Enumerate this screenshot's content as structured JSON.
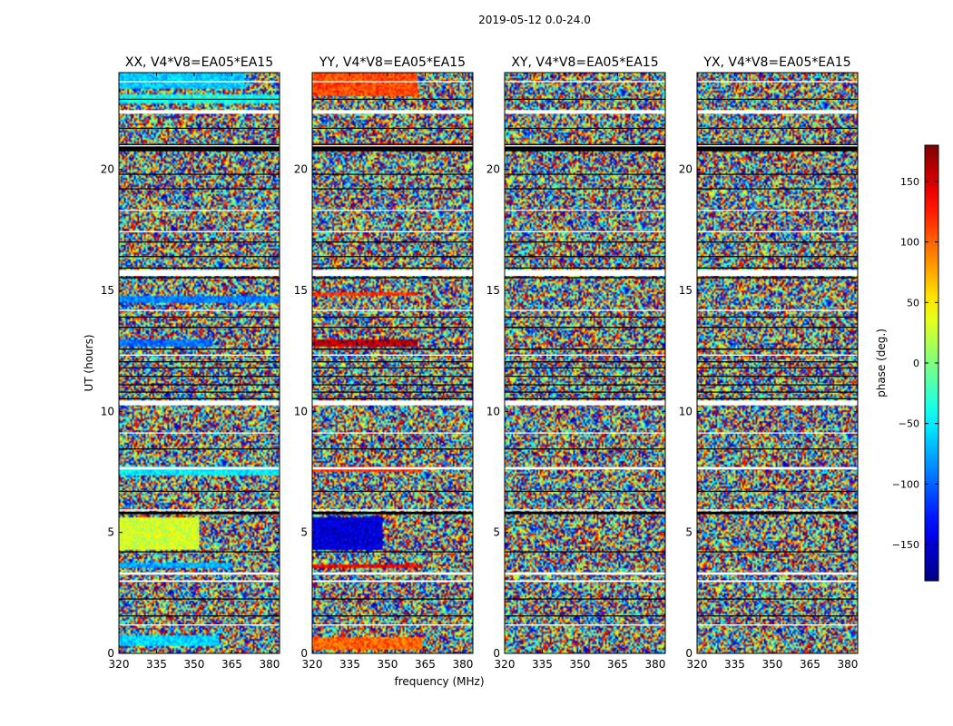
{
  "figure_title": "2019-05-12 0.0-24.0",
  "colors": {
    "flagged": "#000000",
    "blank": "#ffffff",
    "frame": "#000000"
  },
  "chart_data": {
    "type": "heatmap",
    "title": "2019-05-12 0.0-24.0",
    "xlabel": "frequency (MHz)",
    "ylabel": "UT (hours)",
    "xlim": [
      320,
      384
    ],
    "ylim": [
      0,
      24
    ],
    "xticks": [
      320,
      335,
      350,
      365,
      380
    ],
    "yticks": [
      0,
      5,
      10,
      15,
      20
    ],
    "panels": [
      {
        "title": "XX, V4*V8=EA05*EA15",
        "coherent_bands": [
          {
            "t0": 0.3,
            "t1": 0.75,
            "f1": 360,
            "phase": -60
          },
          {
            "t0": 3.5,
            "t1": 3.75,
            "f1": 365,
            "phase": -75
          },
          {
            "t0": 4.3,
            "t1": 5.6,
            "f1": 352,
            "phase": 30
          },
          {
            "t0": 7.35,
            "t1": 7.7,
            "f1": 384,
            "phase": -50
          },
          {
            "t0": 12.7,
            "t1": 12.95,
            "f1": 357,
            "phase": -95
          },
          {
            "t0": 14.5,
            "t1": 14.75,
            "f1": 384,
            "phase": -90
          },
          {
            "t0": 22.7,
            "t1": 23.1,
            "f1": 384,
            "phase": -40
          },
          {
            "t0": 23.3,
            "t1": 24.0,
            "f1": 370,
            "phase": -65
          }
        ]
      },
      {
        "title": "YY, V4*V8=EA05*EA15",
        "coherent_bands": [
          {
            "t0": 0.15,
            "t1": 0.7,
            "f1": 364,
            "phase": 100
          },
          {
            "t0": 3.5,
            "t1": 3.7,
            "f1": 364,
            "phase": 140
          },
          {
            "t0": 4.3,
            "t1": 5.6,
            "f1": 348,
            "phase": -150
          },
          {
            "t0": 7.5,
            "t1": 7.75,
            "f1": 364,
            "phase": 120
          },
          {
            "t0": 12.65,
            "t1": 12.95,
            "f1": 362,
            "phase": 160
          },
          {
            "t0": 14.75,
            "t1": 14.9,
            "f1": 362,
            "phase": 120
          },
          {
            "t0": 20.9,
            "t1": 21.05,
            "f1": 384,
            "phase": 140
          },
          {
            "t0": 23.05,
            "t1": 24.0,
            "f1": 362,
            "phase": 110
          }
        ]
      },
      {
        "title": "XY, V4*V8=EA05*EA15",
        "coherent_bands": []
      },
      {
        "title": "YX, V4*V8=EA05*EA15",
        "coherent_bands": []
      }
    ],
    "blank_rows_utc": [
      [
        15.6,
        15.85
      ],
      [
        10.25,
        10.45
      ],
      [
        22.3,
        22.45
      ],
      [
        20.95,
        21.0
      ],
      [
        7.6,
        7.7
      ],
      [
        3.25,
        3.35
      ],
      [
        2.95,
        3.02
      ],
      [
        14.15,
        14.2
      ],
      [
        1.15,
        1.2
      ],
      [
        17.4,
        17.45
      ],
      [
        5.9,
        5.95
      ],
      [
        23.6,
        23.65
      ],
      [
        12.3,
        12.35
      ],
      [
        18.3,
        18.33
      ],
      [
        9.1,
        9.13
      ]
    ],
    "flag_rows_utc": [
      [
        20.75,
        20.95
      ],
      [
        21.0,
        21.05
      ],
      [
        15.5,
        15.55
      ],
      [
        15.9,
        15.95
      ],
      [
        5.75,
        5.85
      ],
      [
        12.55,
        12.6
      ],
      [
        10.5,
        10.55
      ],
      [
        13.45,
        13.5
      ],
      [
        11.1,
        11.12
      ],
      [
        11.45,
        11.47
      ],
      [
        11.8,
        11.82
      ],
      [
        12.05,
        12.07
      ],
      [
        10.8,
        10.82
      ],
      [
        2.25,
        2.27
      ],
      [
        1.55,
        1.57
      ],
      [
        8.45,
        8.47
      ],
      [
        19.2,
        19.22
      ],
      [
        19.8,
        19.82
      ],
      [
        17.0,
        17.02
      ],
      [
        16.4,
        16.42
      ],
      [
        4.2,
        4.22
      ],
      [
        6.7,
        6.72
      ],
      [
        21.7,
        21.72
      ],
      [
        22.9,
        22.92
      ],
      [
        13.9,
        13.92
      ]
    ],
    "colorbar": {
      "label": "phase (deg.)",
      "range": [
        -180,
        180
      ],
      "ticks": [
        -150,
        -100,
        -50,
        0,
        50,
        100,
        150
      ],
      "tick_labels": [
        "−150",
        "−100",
        "−50",
        "0",
        "50",
        "100",
        "150"
      ],
      "colormap": "jet"
    }
  }
}
